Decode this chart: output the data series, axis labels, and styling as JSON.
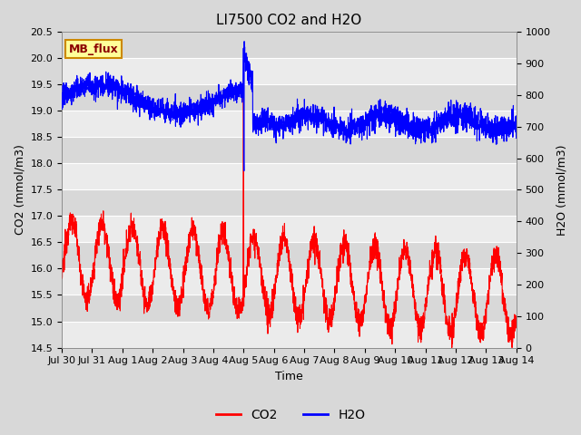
{
  "title": "LI7500 CO2 and H2O",
  "xlabel": "Time",
  "ylabel_left": "CO2 (mmol/m3)",
  "ylabel_right": "H2O (mmol/m3)",
  "co2_ylim": [
    14.5,
    20.5
  ],
  "h2o_ylim": [
    0,
    1000
  ],
  "co2_color": "#FF0000",
  "h2o_color": "#0000FF",
  "fig_bg": "#D8D8D8",
  "plot_bg_light": "#EBEBEB",
  "plot_bg_dark": "#D8D8D8",
  "grid_color": "#FFFFFF",
  "annotation_text": "MB_flux",
  "annotation_bg": "#FFFF99",
  "annotation_border": "#CC8800",
  "annotation_text_color": "#8B0000",
  "x_tick_labels": [
    "Jul 30",
    "Jul 31",
    "Aug 1",
    "Aug 2",
    "Aug 3",
    "Aug 4",
    "Aug 5",
    "Aug 6",
    "Aug 7",
    "Aug 8",
    "Aug 9",
    "Aug 10",
    "Aug 11",
    "Aug 12",
    "Aug 13",
    "Aug 14"
  ],
  "title_fontsize": 11,
  "axis_label_fontsize": 9,
  "tick_fontsize": 8
}
